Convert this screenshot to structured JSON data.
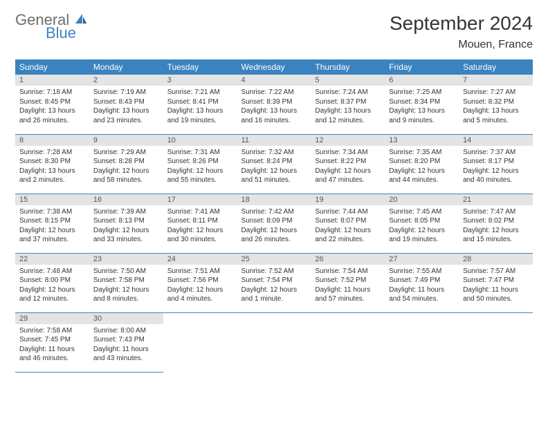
{
  "logo": {
    "word1": "General",
    "word2": "Blue"
  },
  "title": "September 2024",
  "location": "Mouen, France",
  "colors": {
    "accent": "#3b83c0",
    "header_bg": "#e4e4e4",
    "text": "#333333"
  },
  "weekdays": [
    "Sunday",
    "Monday",
    "Tuesday",
    "Wednesday",
    "Thursday",
    "Friday",
    "Saturday"
  ],
  "weeks": [
    [
      {
        "n": "1",
        "sr": "7:18 AM",
        "ss": "8:45 PM",
        "dl": "13 hours and 26 minutes."
      },
      {
        "n": "2",
        "sr": "7:19 AM",
        "ss": "8:43 PM",
        "dl": "13 hours and 23 minutes."
      },
      {
        "n": "3",
        "sr": "7:21 AM",
        "ss": "8:41 PM",
        "dl": "13 hours and 19 minutes."
      },
      {
        "n": "4",
        "sr": "7:22 AM",
        "ss": "8:39 PM",
        "dl": "13 hours and 16 minutes."
      },
      {
        "n": "5",
        "sr": "7:24 AM",
        "ss": "8:37 PM",
        "dl": "13 hours and 12 minutes."
      },
      {
        "n": "6",
        "sr": "7:25 AM",
        "ss": "8:34 PM",
        "dl": "13 hours and 9 minutes."
      },
      {
        "n": "7",
        "sr": "7:27 AM",
        "ss": "8:32 PM",
        "dl": "13 hours and 5 minutes."
      }
    ],
    [
      {
        "n": "8",
        "sr": "7:28 AM",
        "ss": "8:30 PM",
        "dl": "13 hours and 2 minutes."
      },
      {
        "n": "9",
        "sr": "7:29 AM",
        "ss": "8:28 PM",
        "dl": "12 hours and 58 minutes."
      },
      {
        "n": "10",
        "sr": "7:31 AM",
        "ss": "8:26 PM",
        "dl": "12 hours and 55 minutes."
      },
      {
        "n": "11",
        "sr": "7:32 AM",
        "ss": "8:24 PM",
        "dl": "12 hours and 51 minutes."
      },
      {
        "n": "12",
        "sr": "7:34 AM",
        "ss": "8:22 PM",
        "dl": "12 hours and 47 minutes."
      },
      {
        "n": "13",
        "sr": "7:35 AM",
        "ss": "8:20 PM",
        "dl": "12 hours and 44 minutes."
      },
      {
        "n": "14",
        "sr": "7:37 AM",
        "ss": "8:17 PM",
        "dl": "12 hours and 40 minutes."
      }
    ],
    [
      {
        "n": "15",
        "sr": "7:38 AM",
        "ss": "8:15 PM",
        "dl": "12 hours and 37 minutes."
      },
      {
        "n": "16",
        "sr": "7:39 AM",
        "ss": "8:13 PM",
        "dl": "12 hours and 33 minutes."
      },
      {
        "n": "17",
        "sr": "7:41 AM",
        "ss": "8:11 PM",
        "dl": "12 hours and 30 minutes."
      },
      {
        "n": "18",
        "sr": "7:42 AM",
        "ss": "8:09 PM",
        "dl": "12 hours and 26 minutes."
      },
      {
        "n": "19",
        "sr": "7:44 AM",
        "ss": "8:07 PM",
        "dl": "12 hours and 22 minutes."
      },
      {
        "n": "20",
        "sr": "7:45 AM",
        "ss": "8:05 PM",
        "dl": "12 hours and 19 minutes."
      },
      {
        "n": "21",
        "sr": "7:47 AM",
        "ss": "8:02 PM",
        "dl": "12 hours and 15 minutes."
      }
    ],
    [
      {
        "n": "22",
        "sr": "7:48 AM",
        "ss": "8:00 PM",
        "dl": "12 hours and 12 minutes."
      },
      {
        "n": "23",
        "sr": "7:50 AM",
        "ss": "7:58 PM",
        "dl": "12 hours and 8 minutes."
      },
      {
        "n": "24",
        "sr": "7:51 AM",
        "ss": "7:56 PM",
        "dl": "12 hours and 4 minutes."
      },
      {
        "n": "25",
        "sr": "7:52 AM",
        "ss": "7:54 PM",
        "dl": "12 hours and 1 minute."
      },
      {
        "n": "26",
        "sr": "7:54 AM",
        "ss": "7:52 PM",
        "dl": "11 hours and 57 minutes."
      },
      {
        "n": "27",
        "sr": "7:55 AM",
        "ss": "7:49 PM",
        "dl": "11 hours and 54 minutes."
      },
      {
        "n": "28",
        "sr": "7:57 AM",
        "ss": "7:47 PM",
        "dl": "11 hours and 50 minutes."
      }
    ],
    [
      {
        "n": "29",
        "sr": "7:58 AM",
        "ss": "7:45 PM",
        "dl": "11 hours and 46 minutes."
      },
      {
        "n": "30",
        "sr": "8:00 AM",
        "ss": "7:43 PM",
        "dl": "11 hours and 43 minutes."
      },
      null,
      null,
      null,
      null,
      null
    ]
  ],
  "labels": {
    "sunrise": "Sunrise:",
    "sunset": "Sunset:",
    "daylight": "Daylight:"
  }
}
